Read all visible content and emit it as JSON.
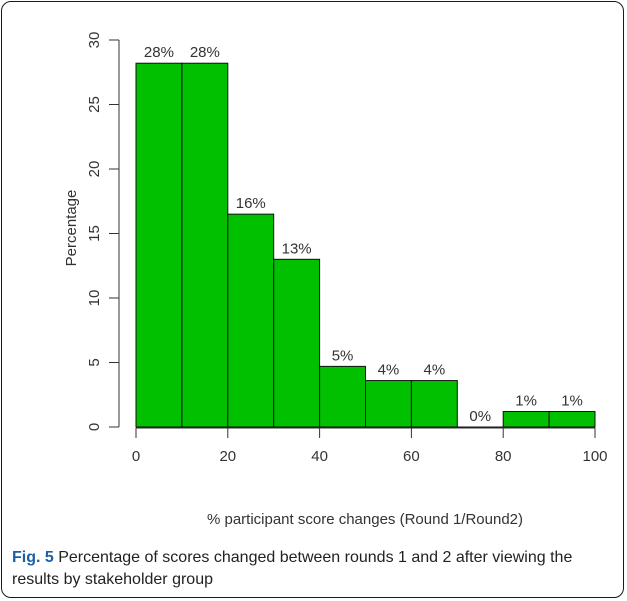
{
  "chart_data": {
    "type": "bar",
    "bins": [
      {
        "x0": 0,
        "x1": 10,
        "value": 28.2,
        "label": "28%"
      },
      {
        "x0": 10,
        "x1": 20,
        "value": 28.2,
        "label": "28%"
      },
      {
        "x0": 20,
        "x1": 30,
        "value": 16.5,
        "label": "16%"
      },
      {
        "x0": 30,
        "x1": 40,
        "value": 13.0,
        "label": "13%"
      },
      {
        "x0": 40,
        "x1": 50,
        "value": 4.7,
        "label": "5%"
      },
      {
        "x0": 50,
        "x1": 60,
        "value": 3.6,
        "label": "4%"
      },
      {
        "x0": 60,
        "x1": 70,
        "value": 3.6,
        "label": "4%"
      },
      {
        "x0": 70,
        "x1": 80,
        "value": 0,
        "label": "0%"
      },
      {
        "x0": 80,
        "x1": 90,
        "value": 1.2,
        "label": "1%"
      },
      {
        "x0": 90,
        "x1": 100,
        "value": 1.2,
        "label": "1%"
      }
    ],
    "xlabel": "% participant score changes (Round 1/Round2)",
    "ylabel": "Percentage",
    "xlim": [
      0,
      100
    ],
    "ylim": [
      0,
      30
    ],
    "xticks": [
      0,
      20,
      40,
      60,
      80,
      100
    ],
    "yticks": [
      0,
      5,
      10,
      15,
      20,
      25,
      30
    ],
    "bar_color": "#00c000",
    "grid": false
  },
  "caption": {
    "label": "Fig. 5",
    "text": " Percentage of scores changed between rounds 1 and 2 after viewing the results by stakeholder group"
  }
}
